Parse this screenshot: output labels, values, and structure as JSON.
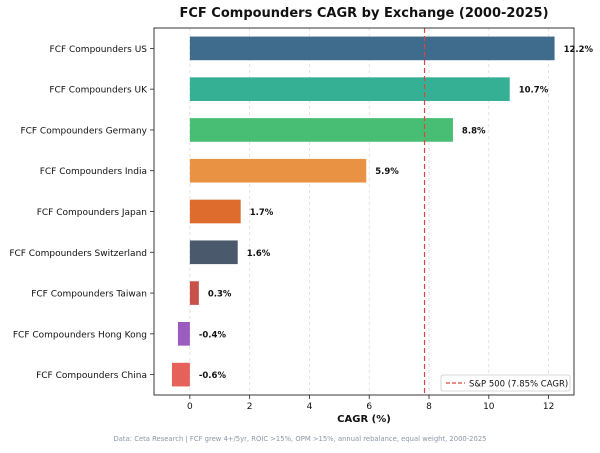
{
  "chart_data": {
    "type": "bar",
    "orientation": "horizontal",
    "title": "FCF Compounders CAGR by Exchange (2000-2025)",
    "xlabel": "CAGR (%)",
    "ylabel": "",
    "xlim": [
      -1.2,
      12.85
    ],
    "xticks": [
      0,
      2,
      4,
      6,
      8,
      10,
      12
    ],
    "grid": true,
    "categories": [
      "FCF Compounders US",
      "FCF Compounders UK",
      "FCF Compounders Germany",
      "FCF Compounders India",
      "FCF Compounders Japan",
      "FCF Compounders Switzerland",
      "FCF Compounders Taiwan",
      "FCF Compounders Hong Kong",
      "FCF Compounders China"
    ],
    "values": [
      12.2,
      10.7,
      8.8,
      5.9,
      1.7,
      1.6,
      0.3,
      -0.4,
      -0.6
    ],
    "value_labels": [
      "12.2%",
      "10.7%",
      "8.8%",
      "5.9%",
      "1.7%",
      "1.6%",
      "0.3%",
      "-0.4%",
      "-0.6%"
    ],
    "colors": [
      "#3f6c8c",
      "#36b095",
      "#48bd74",
      "#e99243",
      "#dd6c2d",
      "#4a5a6c",
      "#c6524a",
      "#9b5cbf",
      "#e7615b"
    ],
    "reference_line": {
      "value": 7.85,
      "label": "S&P 500 (7.85% CAGR)",
      "color": "#d9473b",
      "style": "dashed"
    },
    "legend": {
      "position": "lower-right",
      "entries": [
        "S&P 500 (7.85% CAGR)"
      ]
    },
    "footnote": "Data: Ceta Research | FCF grew 4+/5yr, ROIC >15%, OPM >15%, annual rebalance, equal weight, 2000-2025"
  }
}
